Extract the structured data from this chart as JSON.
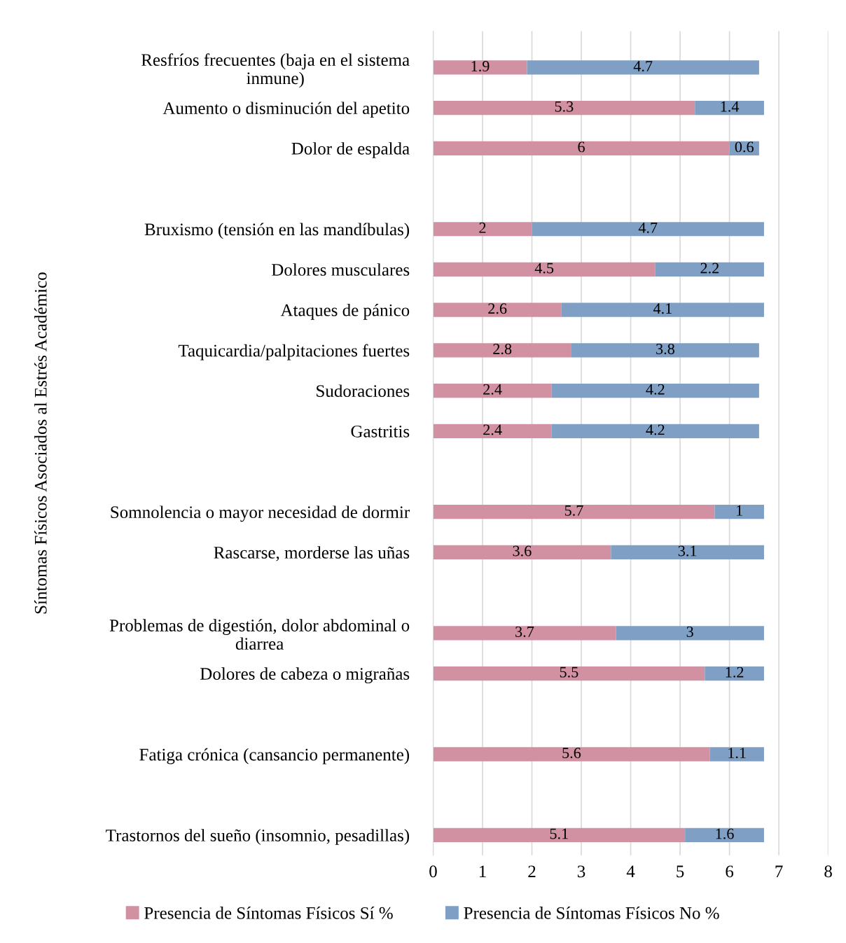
{
  "chart_data": {
    "type": "bar",
    "orientation": "horizontal",
    "stacked": true,
    "ylabel": "Síntomas Físicos Asociados al Estrés Académico",
    "categories": [
      "Resfríos frecuentes (baja en el sistema\ninmune)",
      "Aumento o disminución del apetito",
      "Dolor de espalda",
      null,
      "Bruxismo (tensión en las mandíbulas)",
      "Dolores musculares",
      "Ataques de pánico",
      "Taquicardia/palpitaciones fuertes",
      "Sudoraciones",
      "Gastritis",
      null,
      "Somnolencia o mayor necesidad de dormir",
      "Rascarse, morderse las uñas",
      null,
      "Problemas de digestión, dolor abdominal o\ndiarrea",
      "Dolores de cabeza o migrañas",
      null,
      "Fatiga crónica (cansancio permanente)",
      null,
      "Trastornos del sueño (insomnio, pesadillas)"
    ],
    "series": [
      {
        "name": "Presencia de Síntomas Físicos Sí %",
        "color": "#d191a2",
        "values": [
          1.9,
          5.3,
          6,
          null,
          2,
          4.5,
          2.6,
          2.8,
          2.4,
          2.4,
          null,
          5.7,
          3.6,
          null,
          3.7,
          5.5,
          null,
          5.6,
          null,
          5.1
        ]
      },
      {
        "name": "Presencia de Síntomas Físicos No %",
        "color": "#7f9fc4",
        "values": [
          4.7,
          1.4,
          0.6,
          null,
          4.7,
          2.2,
          4.1,
          3.8,
          4.2,
          4.2,
          null,
          1,
          3.1,
          null,
          3,
          1.2,
          null,
          1.1,
          null,
          1.6
        ]
      }
    ],
    "xlim": [
      0,
      8
    ],
    "xticks": [
      0,
      1,
      2,
      3,
      4,
      5,
      6,
      7,
      8
    ],
    "grid": "x",
    "legend": "bottom",
    "data_labels": true
  }
}
